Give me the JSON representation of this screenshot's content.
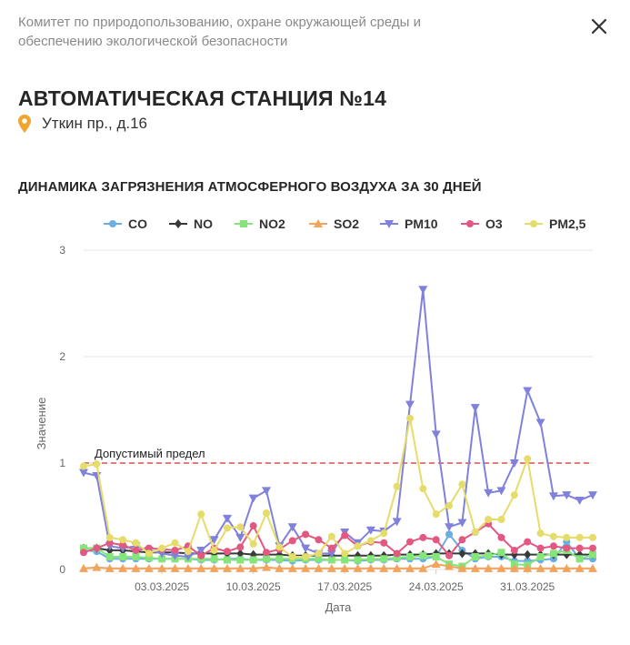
{
  "header": {
    "agency": "Комитет по природопользованию, охране окружающей среды и обеспечению экологической безопасности",
    "close_icon": "close-icon"
  },
  "station": {
    "title": "АВТОМАТИЧЕСКАЯ СТАНЦИЯ №14",
    "address": "Уткин пр., д.16",
    "address_icon": "map-pin-icon",
    "pin_color": "#f0a52e"
  },
  "chart_data": {
    "type": "line",
    "title": "ДИНАМИКА ЗАГРЯЗНЕНИЯ АТМОСФЕРНОГО ВОЗДУХА ЗА 30 ДНЕЙ",
    "xlabel": "Дата",
    "ylabel": "Значение",
    "ylim": [
      0,
      3
    ],
    "yticks": [
      0,
      1,
      2,
      3
    ],
    "grid": true,
    "legend_position": "top",
    "x": [
      "25.02.2025",
      "26.02.2025",
      "27.02.2025",
      "28.02.2025",
      "01.03.2025",
      "02.03.2025",
      "03.03.2025",
      "04.03.2025",
      "05.03.2025",
      "06.03.2025",
      "07.03.2025",
      "08.03.2025",
      "09.03.2025",
      "10.03.2025",
      "11.03.2025",
      "12.03.2025",
      "13.03.2025",
      "14.03.2025",
      "15.03.2025",
      "16.03.2025",
      "17.03.2025",
      "18.03.2025",
      "19.03.2025",
      "20.03.2025",
      "21.03.2025",
      "22.03.2025",
      "23.03.2025",
      "24.03.2025",
      "25.03.2025",
      "26.03.2025",
      "27.03.2025",
      "28.03.2025",
      "29.03.2025",
      "30.03.2025",
      "31.03.2025",
      "01.04.2025",
      "02.04.2025",
      "03.04.2025",
      "04.04.2025",
      "05.04.2025"
    ],
    "xticks": [
      "03.03.2025",
      "10.03.2025",
      "17.03.2025",
      "24.03.2025",
      "31.03.2025"
    ],
    "threshold": {
      "label": "Допустимый предел",
      "value": 1,
      "color": "#d9534f"
    },
    "series": [
      {
        "name": "CO",
        "color": "#6aaee3",
        "marker": "circle",
        "values": [
          0.18,
          0.17,
          0.1,
          0.1,
          0.1,
          0.1,
          0.1,
          0.1,
          0.1,
          0.09,
          0.09,
          0.1,
          0.1,
          0.09,
          0.09,
          0.09,
          0.08,
          0.09,
          0.09,
          0.09,
          0.09,
          0.08,
          0.09,
          0.09,
          0.1,
          0.1,
          0.1,
          0.12,
          0.33,
          0.18,
          0.1,
          0.12,
          0.12,
          0.08,
          0.08,
          0.09,
          0.1,
          0.26,
          0.1,
          0.1
        ]
      },
      {
        "name": "NO",
        "color": "#3a3a3a",
        "marker": "diamond",
        "values": [
          0.2,
          0.2,
          0.18,
          0.18,
          0.17,
          0.16,
          0.16,
          0.16,
          0.15,
          0.15,
          0.15,
          0.15,
          0.15,
          0.14,
          0.14,
          0.14,
          0.13,
          0.13,
          0.13,
          0.13,
          0.13,
          0.13,
          0.13,
          0.13,
          0.14,
          0.14,
          0.14,
          0.15,
          0.15,
          0.15,
          0.15,
          0.15,
          0.14,
          0.14,
          0.14,
          0.14,
          0.14,
          0.14,
          0.14,
          0.14
        ]
      },
      {
        "name": "NO2",
        "color": "#86e57a",
        "marker": "square",
        "values": [
          0.2,
          0.2,
          0.12,
          0.12,
          0.12,
          0.11,
          0.1,
          0.1,
          0.1,
          0.1,
          0.1,
          0.09,
          0.09,
          0.09,
          0.1,
          0.1,
          0.1,
          0.1,
          0.1,
          0.09,
          0.09,
          0.09,
          0.1,
          0.1,
          0.11,
          0.12,
          0.13,
          0.12,
          0.05,
          0.03,
          0.12,
          0.13,
          0.16,
          0.05,
          0.04,
          0.12,
          0.15,
          0.18,
          0.1,
          0.14
        ]
      },
      {
        "name": "SO2",
        "color": "#f2a35c",
        "marker": "triangle",
        "values": [
          0.01,
          0.02,
          0.01,
          0.01,
          0.01,
          0.01,
          0.01,
          0.01,
          0.01,
          0.01,
          0.01,
          0.01,
          0.01,
          0.01,
          0.02,
          0.01,
          0.01,
          0.01,
          0.01,
          0.01,
          0.01,
          0.01,
          0.01,
          0.01,
          0.01,
          0.01,
          0.01,
          0.05,
          0.03,
          0.01,
          0.01,
          0.01,
          0.01,
          0.01,
          0.01,
          0.01,
          0.01,
          0.01,
          0.01,
          0.01
        ]
      },
      {
        "name": "PM10",
        "color": "#8080dd",
        "marker": "triangle-down",
        "values": [
          0.91,
          0.88,
          0.22,
          0.2,
          0.22,
          0.18,
          0.15,
          0.13,
          0.12,
          0.18,
          0.28,
          0.48,
          0.3,
          0.67,
          0.74,
          0.22,
          0.4,
          0.2,
          0.15,
          0.15,
          0.35,
          0.25,
          0.37,
          0.36,
          0.45,
          1.55,
          2.63,
          1.27,
          0.4,
          0.44,
          1.52,
          0.72,
          0.74,
          1.0,
          1.68,
          1.38,
          0.69,
          0.7,
          0.65,
          0.7
        ]
      },
      {
        "name": "O3",
        "color": "#e35880",
        "marker": "circle",
        "values": [
          0.16,
          0.2,
          0.25,
          0.23,
          0.18,
          0.2,
          0.19,
          0.18,
          0.22,
          0.13,
          0.2,
          0.17,
          0.21,
          0.41,
          0.16,
          0.19,
          0.27,
          0.33,
          0.28,
          0.2,
          0.32,
          0.22,
          0.26,
          0.25,
          0.15,
          0.26,
          0.3,
          0.28,
          0.13,
          0.28,
          0.35,
          0.43,
          0.3,
          0.18,
          0.26,
          0.2,
          0.22,
          0.2,
          0.2,
          0.2
        ]
      },
      {
        "name": "PM2,5",
        "color": "#e5dc6a",
        "marker": "circle",
        "values": [
          0.97,
          0.99,
          0.3,
          0.28,
          0.25,
          0.15,
          0.2,
          0.25,
          0.17,
          0.52,
          0.18,
          0.39,
          0.4,
          0.24,
          0.53,
          0.21,
          0.12,
          0.12,
          0.15,
          0.31,
          0.15,
          0.22,
          0.27,
          0.34,
          0.78,
          1.42,
          0.76,
          0.52,
          0.6,
          0.8,
          0.35,
          0.47,
          0.47,
          0.7,
          1.04,
          0.34,
          0.31,
          0.3,
          0.3,
          0.3
        ]
      }
    ]
  }
}
